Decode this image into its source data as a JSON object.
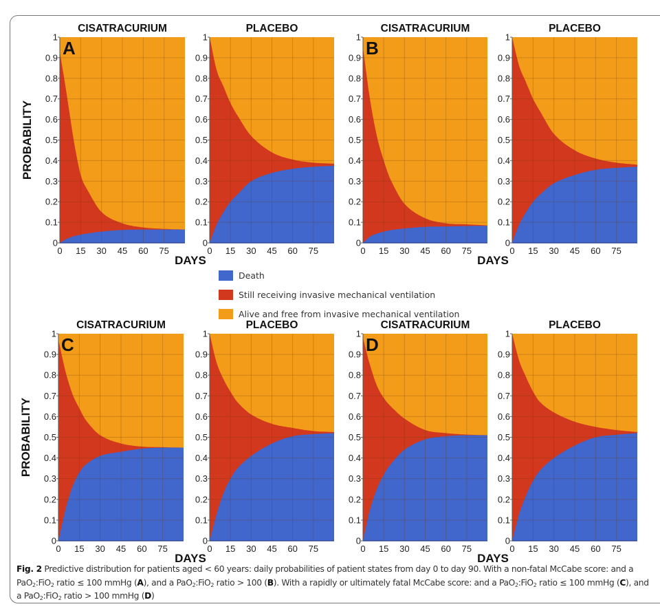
{
  "figure": {
    "caption_label": "Fig. 2",
    "caption_parts": [
      {
        "t": "  Predictive distribution for patients aged < 60 years: daily probabilities of patient states from day 0 to day 90. With a non-fatal McCabe score: and a PaO"
      },
      {
        "sub": "2"
      },
      {
        "t": ":FiO"
      },
      {
        "sub": "2"
      },
      {
        "t": " ratio ≤ 100 mmHg ("
      },
      {
        "b": "A"
      },
      {
        "t": "), and a PaO"
      },
      {
        "sub": "2"
      },
      {
        "t": ":FiO"
      },
      {
        "sub": "2"
      },
      {
        "t": " ratio > 100 ("
      },
      {
        "b": "B"
      },
      {
        "t": "). With a rapidly or ultimately fatal McCabe score: and a PaO"
      },
      {
        "sub": "2"
      },
      {
        "t": ":FiO"
      },
      {
        "sub": "2"
      },
      {
        "t": " ratio ≤ 100 mmHg ("
      },
      {
        "b": "C"
      },
      {
        "t": "), and a PaO"
      },
      {
        "sub": "2"
      },
      {
        "t": ":FiO"
      },
      {
        "sub": "2"
      },
      {
        "t": " ratio > 100 mmHg ("
      },
      {
        "b": "D"
      },
      {
        "t": ")"
      }
    ]
  },
  "legend": [
    {
      "key": "death",
      "label": "Death",
      "color": "#4166cc"
    },
    {
      "key": "ventilated",
      "label": "Still receiving invasive mechanical ventilation",
      "color": "#d2381e"
    },
    {
      "key": "free",
      "label": "Alive and free from invasive mechanical ventilation",
      "color": "#f39c1a"
    }
  ],
  "chart_data": [
    {
      "type": "area",
      "stacked": true,
      "panel": "A",
      "title": "CISATRACURIUM",
      "xlabel": "DAYS",
      "ylabel": "PROBABILITY",
      "xlim": [
        0,
        90
      ],
      "ylim": [
        0,
        1
      ],
      "xticks": [
        0,
        15,
        30,
        45,
        60,
        75
      ],
      "yticks": [
        0,
        0.1,
        0.2,
        0.3,
        0.4,
        0.5,
        0.6,
        0.7,
        0.8,
        0.9,
        1
      ],
      "grid": true,
      "x": [
        0,
        5,
        10,
        15,
        20,
        30,
        45,
        60,
        75,
        90
      ],
      "series": [
        {
          "name": "Death",
          "values": [
            0,
            0.02,
            0.032,
            0.04,
            0.046,
            0.055,
            0.063,
            0.065,
            0.065,
            0.065
          ]
        },
        {
          "name": "Still receiving invasive mechanical ventilation",
          "values": [
            0.93,
            0.7,
            0.468,
            0.29,
            0.21,
            0.095,
            0.032,
            0.01,
            0.003,
            0.0
          ]
        },
        {
          "name": "Alive and free from invasive mechanical ventilation",
          "values": [
            0.07,
            0.28,
            0.5,
            0.67,
            0.744,
            0.85,
            0.905,
            0.925,
            0.932,
            0.935
          ]
        }
      ]
    },
    {
      "type": "area",
      "stacked": true,
      "panel": "A",
      "title": "PLACEBO",
      "xlabel": "DAYS",
      "ylabel": "",
      "xlim": [
        0,
        90
      ],
      "ylim": [
        0,
        1
      ],
      "xticks": [
        0,
        15,
        30,
        45,
        60,
        75
      ],
      "yticks": [
        0,
        0.1,
        0.2,
        0.3,
        0.4,
        0.5,
        0.6,
        0.7,
        0.8,
        0.9,
        1
      ],
      "grid": true,
      "x": [
        0,
        5,
        10,
        15,
        20,
        30,
        45,
        60,
        75,
        90
      ],
      "series": [
        {
          "name": "Death",
          "values": [
            0,
            0.09,
            0.15,
            0.2,
            0.235,
            0.3,
            0.34,
            0.36,
            0.37,
            0.375
          ]
        },
        {
          "name": "Still receiving invasive mechanical ventilation",
          "values": [
            1.0,
            0.75,
            0.61,
            0.48,
            0.385,
            0.22,
            0.1,
            0.045,
            0.02,
            0.01
          ]
        },
        {
          "name": "Alive and free from invasive mechanical ventilation",
          "values": [
            0,
            0.16,
            0.24,
            0.32,
            0.38,
            0.48,
            0.56,
            0.595,
            0.61,
            0.615
          ]
        }
      ]
    },
    {
      "type": "area",
      "stacked": true,
      "panel": "B",
      "title": "CISATRACURIUM",
      "xlabel": "DAYS",
      "ylabel": "",
      "xlim": [
        0,
        90
      ],
      "ylim": [
        0,
        1
      ],
      "xticks": [
        0,
        15,
        30,
        45,
        60,
        75
      ],
      "yticks": [
        0,
        0.1,
        0.2,
        0.3,
        0.4,
        0.5,
        0.6,
        0.7,
        0.8,
        0.9,
        1
      ],
      "grid": true,
      "x": [
        0,
        5,
        10,
        15,
        20,
        30,
        45,
        60,
        75,
        90
      ],
      "series": [
        {
          "name": "Death",
          "values": [
            0,
            0.03,
            0.045,
            0.055,
            0.062,
            0.07,
            0.078,
            0.08,
            0.082,
            0.083
          ]
        },
        {
          "name": "Still receiving invasive mechanical ventilation",
          "values": [
            0.95,
            0.67,
            0.475,
            0.345,
            0.245,
            0.12,
            0.042,
            0.015,
            0.008,
            0.002
          ]
        },
        {
          "name": "Alive and free from invasive mechanical ventilation",
          "values": [
            0.05,
            0.3,
            0.48,
            0.6,
            0.693,
            0.81,
            0.88,
            0.905,
            0.91,
            0.915
          ]
        }
      ]
    },
    {
      "type": "area",
      "stacked": true,
      "panel": "B",
      "title": "PLACEBO",
      "xlabel": "DAYS",
      "ylabel": "",
      "xlim": [
        0,
        90
      ],
      "ylim": [
        0,
        1
      ],
      "xticks": [
        0,
        15,
        30,
        45,
        60,
        75
      ],
      "yticks": [
        0,
        0.1,
        0.2,
        0.3,
        0.4,
        0.5,
        0.6,
        0.7,
        0.8,
        0.9,
        1
      ],
      "grid": true,
      "x": [
        0,
        5,
        10,
        15,
        20,
        30,
        45,
        60,
        75,
        90
      ],
      "series": [
        {
          "name": "Death",
          "values": [
            0,
            0.09,
            0.15,
            0.2,
            0.235,
            0.29,
            0.33,
            0.355,
            0.365,
            0.37
          ]
        },
        {
          "name": "Still receiving invasive mechanical ventilation",
          "values": [
            1.0,
            0.77,
            0.63,
            0.5,
            0.405,
            0.24,
            0.12,
            0.055,
            0.025,
            0.01
          ]
        },
        {
          "name": "Alive and free from invasive mechanical ventilation",
          "values": [
            0,
            0.14,
            0.22,
            0.3,
            0.36,
            0.47,
            0.55,
            0.59,
            0.61,
            0.62
          ]
        }
      ]
    },
    {
      "type": "area",
      "stacked": true,
      "panel": "C",
      "title": "CISATRACURIUM",
      "xlabel": "DAYS",
      "ylabel": "PROBABILITY",
      "xlim": [
        0,
        90
      ],
      "ylim": [
        0,
        1
      ],
      "xticks": [
        0,
        15,
        30,
        45,
        60,
        75
      ],
      "yticks": [
        0,
        0.1,
        0.2,
        0.3,
        0.4,
        0.5,
        0.6,
        0.7,
        0.8,
        0.9,
        1
      ],
      "grid": true,
      "x": [
        0,
        5,
        10,
        15,
        20,
        30,
        45,
        60,
        75,
        90
      ],
      "series": [
        {
          "name": "Death",
          "values": [
            0,
            0.15,
            0.26,
            0.33,
            0.37,
            0.41,
            0.43,
            0.445,
            0.45,
            0.45
          ]
        },
        {
          "name": "Still receiving invasive mechanical ventilation",
          "values": [
            0.97,
            0.67,
            0.45,
            0.31,
            0.21,
            0.1,
            0.04,
            0.01,
            0.002,
            0.0
          ]
        },
        {
          "name": "Alive and free from invasive mechanical ventilation",
          "values": [
            0.03,
            0.18,
            0.29,
            0.36,
            0.42,
            0.49,
            0.53,
            0.545,
            0.548,
            0.55
          ]
        }
      ]
    },
    {
      "type": "area",
      "stacked": true,
      "panel": "C",
      "title": "PLACEBO",
      "xlabel": "DAYS",
      "ylabel": "",
      "xlim": [
        0,
        90
      ],
      "ylim": [
        0,
        1
      ],
      "xticks": [
        0,
        15,
        30,
        45,
        60,
        75
      ],
      "yticks": [
        0,
        0.1,
        0.2,
        0.3,
        0.4,
        0.5,
        0.6,
        0.7,
        0.8,
        0.9,
        1
      ],
      "grid": true,
      "x": [
        0,
        5,
        10,
        15,
        20,
        30,
        45,
        60,
        75,
        90
      ],
      "series": [
        {
          "name": "Death",
          "values": [
            0,
            0.13,
            0.23,
            0.3,
            0.35,
            0.41,
            0.47,
            0.505,
            0.515,
            0.52
          ]
        },
        {
          "name": "Still receiving invasive mechanical ventilation",
          "values": [
            1.0,
            0.73,
            0.55,
            0.42,
            0.32,
            0.2,
            0.095,
            0.04,
            0.015,
            0.005
          ]
        },
        {
          "name": "Alive and free from invasive mechanical ventilation",
          "values": [
            0,
            0.14,
            0.22,
            0.28,
            0.33,
            0.39,
            0.435,
            0.455,
            0.47,
            0.475
          ]
        }
      ]
    },
    {
      "type": "area",
      "stacked": true,
      "panel": "D",
      "title": "CISATRACURIUM",
      "xlabel": "DAYS",
      "ylabel": "",
      "xlim": [
        0,
        90
      ],
      "ylim": [
        0,
        1
      ],
      "xticks": [
        0,
        15,
        30,
        45,
        60,
        75
      ],
      "yticks": [
        0,
        0.1,
        0.2,
        0.3,
        0.4,
        0.5,
        0.6,
        0.7,
        0.8,
        0.9,
        1
      ],
      "grid": true,
      "x": [
        0,
        5,
        10,
        15,
        20,
        30,
        45,
        60,
        75,
        90
      ],
      "series": [
        {
          "name": "Death",
          "values": [
            0,
            0.15,
            0.25,
            0.32,
            0.37,
            0.44,
            0.49,
            0.505,
            0.51,
            0.51
          ]
        },
        {
          "name": "Still receiving invasive mechanical ventilation",
          "values": [
            0.98,
            0.7,
            0.5,
            0.37,
            0.28,
            0.15,
            0.045,
            0.015,
            0.003,
            0.0
          ]
        },
        {
          "name": "Alive and free from invasive mechanical ventilation",
          "values": [
            0.02,
            0.15,
            0.25,
            0.31,
            0.35,
            0.41,
            0.465,
            0.48,
            0.487,
            0.49
          ]
        }
      ]
    },
    {
      "type": "area",
      "stacked": true,
      "panel": "D",
      "title": "PLACEBO",
      "xlabel": "DAYS",
      "ylabel": "",
      "xlim": [
        0,
        90
      ],
      "ylim": [
        0,
        1
      ],
      "xticks": [
        0,
        15,
        30,
        45,
        60,
        75
      ],
      "yticks": [
        0,
        0.1,
        0.2,
        0.3,
        0.4,
        0.5,
        0.6,
        0.7,
        0.8,
        0.9,
        1
      ],
      "grid": true,
      "x": [
        0,
        5,
        10,
        15,
        20,
        30,
        45,
        60,
        75,
        90
      ],
      "series": [
        {
          "name": "Death",
          "values": [
            0,
            0.13,
            0.22,
            0.29,
            0.34,
            0.4,
            0.46,
            0.5,
            0.512,
            0.52
          ]
        },
        {
          "name": "Still receiving invasive mechanical ventilation",
          "values": [
            1.0,
            0.74,
            0.57,
            0.43,
            0.33,
            0.22,
            0.115,
            0.05,
            0.023,
            0.005
          ]
        },
        {
          "name": "Alive and free from invasive mechanical ventilation",
          "values": [
            0,
            0.13,
            0.21,
            0.28,
            0.33,
            0.38,
            0.425,
            0.45,
            0.465,
            0.475
          ]
        }
      ]
    }
  ]
}
